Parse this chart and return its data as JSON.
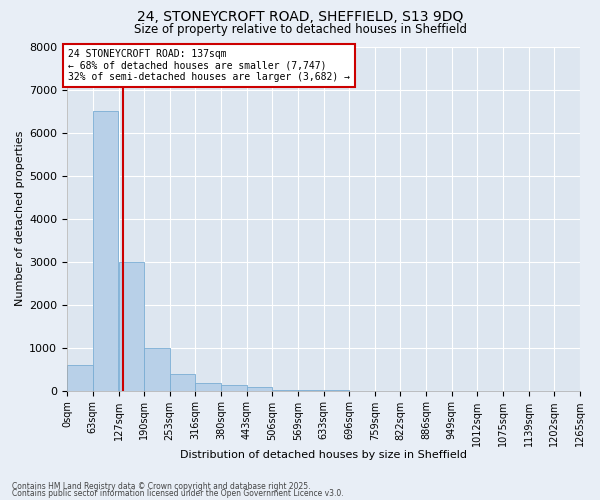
{
  "title1": "24, STONEYCROFT ROAD, SHEFFIELD, S13 9DQ",
  "title2": "Size of property relative to detached houses in Sheffield",
  "xlabel": "Distribution of detached houses by size in Sheffield",
  "ylabel": "Number of detached properties",
  "bin_labels": [
    "0sqm",
    "63sqm",
    "127sqm",
    "190sqm",
    "253sqm",
    "316sqm",
    "380sqm",
    "443sqm",
    "506sqm",
    "569sqm",
    "633sqm",
    "696sqm",
    "759sqm",
    "822sqm",
    "886sqm",
    "949sqm",
    "1012sqm",
    "1075sqm",
    "1139sqm",
    "1202sqm",
    "1265sqm"
  ],
  "bin_edges": [
    0,
    63,
    127,
    190,
    253,
    316,
    380,
    443,
    506,
    569,
    633,
    696,
    759,
    822,
    886,
    949,
    1012,
    1075,
    1139,
    1202,
    1265
  ],
  "bar_values": [
    600,
    6500,
    3000,
    1000,
    380,
    170,
    120,
    80,
    10,
    5,
    3,
    2,
    1,
    1,
    0,
    0,
    0,
    0,
    0,
    0
  ],
  "bar_color": "#b8d0e8",
  "bar_edge_color": "#7aadd4",
  "property_size": 137,
  "vline_color": "#cc0000",
  "annotation_text": "24 STONEYCROFT ROAD: 137sqm\n← 68% of detached houses are smaller (7,747)\n32% of semi-detached houses are larger (3,682) →",
  "annotation_box_color": "#ffffff",
  "annotation_box_edge": "#cc0000",
  "ylim": [
    0,
    8000
  ],
  "yticks": [
    0,
    1000,
    2000,
    3000,
    4000,
    5000,
    6000,
    7000,
    8000
  ],
  "background_color": "#e8eef6",
  "plot_bg_color": "#dde6f0",
  "grid_color": "#ffffff",
  "footer1": "Contains HM Land Registry data © Crown copyright and database right 2025.",
  "footer2": "Contains public sector information licensed under the Open Government Licence v3.0."
}
